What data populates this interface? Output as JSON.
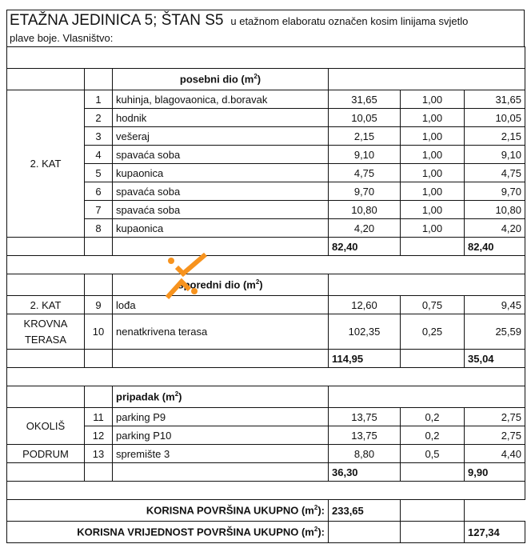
{
  "title": {
    "main": "ETAŽNA JEDINICA 5; ŠTAN S5",
    "desc_line1": "u etažnom elaboratu označen kosim linijama svjetlo",
    "desc_line2": "plave  boje. Vlasništvo:"
  },
  "posebni": {
    "header": "posebni dio (m",
    "floor": "2. KAT",
    "rows": [
      {
        "no": "1",
        "name": "kuhinja, blagovaonica, d.boravak",
        "area": "31,65",
        "coef": "1,00",
        "total": "31,65"
      },
      {
        "no": "2",
        "name": "hodnik",
        "area": "10,05",
        "coef": "1,00",
        "total": "10,05"
      },
      {
        "no": "3",
        "name": "vešeraj",
        "area": "2,15",
        "coef": "1,00",
        "total": "2,15"
      },
      {
        "no": "4",
        "name": "spavaća soba",
        "area": "9,10",
        "coef": "1,00",
        "total": "9,10"
      },
      {
        "no": "5",
        "name": "kupaonica",
        "area": "4,75",
        "coef": "1,00",
        "total": "4,75"
      },
      {
        "no": "6",
        "name": "spavaća soba",
        "area": "9,70",
        "coef": "1,00",
        "total": "9,70"
      },
      {
        "no": "7",
        "name": "spavaća soba",
        "area": "10,80",
        "coef": "1,00",
        "total": "10,80"
      },
      {
        "no": "8",
        "name": "kupaonica",
        "area": "4,20",
        "coef": "1,00",
        "total": "4,20"
      }
    ],
    "sum_area": "82,40",
    "sum_total": "82,40"
  },
  "sporedni": {
    "header": "sporedni dio (m",
    "rows": [
      {
        "floor": "2. KAT",
        "no": "9",
        "name": "lođa",
        "area": "12,60",
        "coef": "0,75",
        "total": "9,45"
      },
      {
        "floor_line1": "KROVNA",
        "floor_line2": "TERASA",
        "no": "10",
        "name": "nenatkrivena terasa",
        "area": "102,35",
        "coef": "0,25",
        "total": "25,59"
      }
    ],
    "sum_area": "114,95",
    "sum_total": "35,04"
  },
  "pripadak": {
    "header": "pripadak (m",
    "rows": [
      {
        "floor": "OKOLIŠ",
        "no": "11",
        "name": "parking P9",
        "area": "13,75",
        "coef": "0,2",
        "total": "2,75"
      },
      {
        "no": "12",
        "name": "parking P10",
        "area": "13,75",
        "coef": "0,2",
        "total": "2,75"
      },
      {
        "floor": "PODRUM",
        "no": "13",
        "name": "spremište 3",
        "area": "8,80",
        "coef": "0,5",
        "total": "4,40"
      }
    ],
    "sum_area": "36,30",
    "sum_total": "9,90"
  },
  "totals": {
    "korisna_label": "KORISNA POVRŠINA UKUPNO (m",
    "korisna_value": "233,65",
    "vrijednost_label": "KORISNA  VRIJEDNOST POVRŠINA UKUPNO (m",
    "vrijednost_value": "127,34"
  },
  "sup": "2",
  "colors": {
    "watermark": "#f7931e"
  }
}
